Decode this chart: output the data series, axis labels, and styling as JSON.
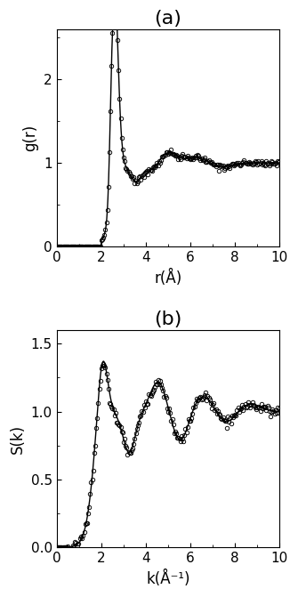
{
  "title_a": "(a)",
  "title_b": "(b)",
  "ylabel_a": "g(r)",
  "xlabel_a": "r(Å)",
  "ylabel_b": "S(k)",
  "xlabel_b": "k(Å⁻¹)",
  "xlim_a": [
    0,
    10
  ],
  "ylim_a": [
    0,
    2.6
  ],
  "xlim_b": [
    0,
    10
  ],
  "ylim_b": [
    0.0,
    1.6
  ],
  "yticks_a": [
    0,
    1,
    2
  ],
  "xticks_a": [
    0,
    2,
    4,
    6,
    8,
    10
  ],
  "yticks_b": [
    0.0,
    0.5,
    1.0,
    1.5
  ],
  "xticks_b": [
    0,
    2,
    4,
    6,
    8,
    10
  ],
  "line_color": "#000000",
  "circle_color": "#000000",
  "background_color": "#ffffff",
  "title_fontsize": 16,
  "label_fontsize": 12,
  "tick_fontsize": 11
}
